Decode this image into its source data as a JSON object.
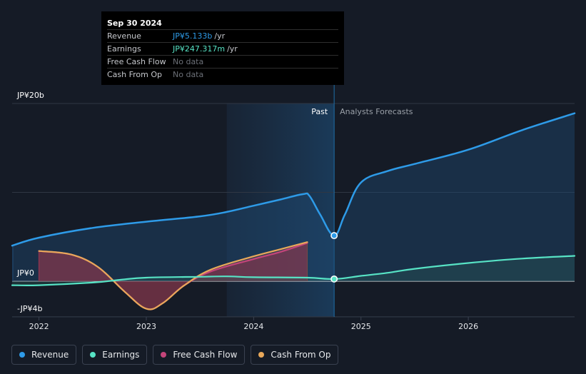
{
  "colors": {
    "revenue": "#2e9be8",
    "earnings": "#57e3c5",
    "free_cash_flow": "#c4457a",
    "cash_from_op": "#e8a85a",
    "background": "#151b26"
  },
  "tooltip": {
    "date": "Sep 30 2024",
    "rows": [
      {
        "label": "Revenue",
        "value": "JP¥5.133b",
        "unit": "/yr"
      },
      {
        "label": "Earnings",
        "value": "JP¥247.317m",
        "unit": "/yr"
      },
      {
        "label": "Free Cash Flow",
        "value": "No data"
      },
      {
        "label": "Cash From Op",
        "value": "No data"
      }
    ]
  },
  "legend": [
    {
      "label": "Revenue",
      "icon": "revenue-legend-dot"
    },
    {
      "label": "Earnings",
      "icon": "earnings-legend-dot"
    },
    {
      "label": "Free Cash Flow",
      "icon": "free-cash-flow-legend-dot"
    },
    {
      "label": "Cash From Op",
      "icon": "cash-from-op-legend-dot"
    }
  ],
  "chart_data": {
    "type": "line",
    "title": "",
    "xlabel": "",
    "ylabel": "",
    "unit": "JP¥b",
    "ylim": [
      -4,
      20
    ],
    "y_tick_labels": [
      {
        "value": 20,
        "label": "JP¥20b"
      },
      {
        "value": 0,
        "label": "JP¥0"
      },
      {
        "value": -4,
        "label": "-JP¥4b"
      }
    ],
    "xlim": [
      2021.75,
      2026.99
    ],
    "x_ticks": [
      {
        "value": 2022,
        "label": "2022"
      },
      {
        "value": 2023,
        "label": "2023"
      },
      {
        "value": 2024,
        "label": "2024"
      },
      {
        "value": 2025,
        "label": "2025"
      },
      {
        "value": 2026,
        "label": "2026"
      }
    ],
    "past_label": "Past",
    "forecast_label": "Analysts Forecasts",
    "highlight_start": 2023.75,
    "divider_x": 2024.75,
    "series": [
      {
        "name": "Revenue",
        "key": "revenue",
        "points": [
          [
            2021.75,
            4.0
          ],
          [
            2022.0,
            4.9
          ],
          [
            2022.5,
            6.0
          ],
          [
            2023.0,
            6.7
          ],
          [
            2023.5,
            7.3
          ],
          [
            2023.75,
            7.8
          ],
          [
            2024.0,
            8.5
          ],
          [
            2024.25,
            9.2
          ],
          [
            2024.46,
            9.8
          ],
          [
            2024.52,
            9.6
          ],
          [
            2024.62,
            7.5
          ],
          [
            2024.75,
            5.133
          ],
          [
            2024.85,
            7.5
          ],
          [
            2025.0,
            11.1
          ],
          [
            2025.25,
            12.4
          ],
          [
            2025.5,
            13.2
          ],
          [
            2026.0,
            14.8
          ],
          [
            2026.5,
            17.0
          ],
          [
            2026.99,
            18.9
          ]
        ]
      },
      {
        "name": "Earnings",
        "key": "earnings",
        "points": [
          [
            2021.75,
            -0.45
          ],
          [
            2022.0,
            -0.45
          ],
          [
            2022.5,
            -0.15
          ],
          [
            2022.75,
            0.15
          ],
          [
            2023.0,
            0.4
          ],
          [
            2023.5,
            0.5
          ],
          [
            2023.75,
            0.55
          ],
          [
            2024.0,
            0.45
          ],
          [
            2024.5,
            0.4
          ],
          [
            2024.75,
            0.247
          ],
          [
            2025.0,
            0.6
          ],
          [
            2025.25,
            0.95
          ],
          [
            2025.5,
            1.4
          ],
          [
            2026.0,
            2.05
          ],
          [
            2026.5,
            2.55
          ],
          [
            2026.99,
            2.85
          ]
        ]
      },
      {
        "name": "Free Cash Flow",
        "key": "free_cash_flow",
        "points": [
          [
            2022.0,
            3.4
          ],
          [
            2022.3,
            3.0
          ],
          [
            2022.55,
            1.6
          ],
          [
            2022.8,
            -1.2
          ],
          [
            2023.0,
            -3.1
          ],
          [
            2023.15,
            -2.5
          ],
          [
            2023.35,
            -0.5
          ],
          [
            2023.6,
            1.1
          ],
          [
            2024.0,
            2.5
          ],
          [
            2024.25,
            3.3
          ],
          [
            2024.5,
            4.3
          ]
        ]
      },
      {
        "name": "Cash From Op",
        "key": "cash_from_op",
        "points": [
          [
            2022.0,
            3.4
          ],
          [
            2022.3,
            3.0
          ],
          [
            2022.55,
            1.6
          ],
          [
            2022.8,
            -1.2
          ],
          [
            2023.0,
            -3.1
          ],
          [
            2023.15,
            -2.5
          ],
          [
            2023.35,
            -0.5
          ],
          [
            2023.6,
            1.3
          ],
          [
            2024.0,
            2.8
          ],
          [
            2024.25,
            3.6
          ],
          [
            2024.5,
            4.4
          ]
        ]
      }
    ],
    "markers": [
      {
        "series": "revenue",
        "x": 2024.75,
        "y": 5.133
      },
      {
        "series": "earnings",
        "x": 2024.75,
        "y": 0.247
      }
    ]
  }
}
